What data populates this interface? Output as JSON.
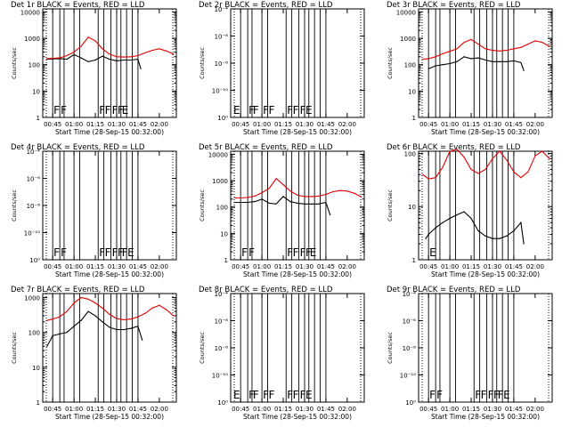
{
  "colors": {
    "background": "#ffffff",
    "axes": "#000000",
    "events": "#000000",
    "lld": "#e00000"
  },
  "chart_data": [
    {
      "type": "line",
      "title": "Det 1r BLACK = Events, RED = LLD",
      "ylabel": "Counts/sec",
      "xlabel": "Start Time (28-Sep-15 00:32:00)",
      "xlim": [
        "00:38",
        "02:12"
      ],
      "ylim": [
        1,
        13000
      ],
      "yscale": "log",
      "yticks": [
        "1",
        "10",
        "100",
        "1000",
        "10000"
      ],
      "xticks": [
        "00:45",
        "01:00",
        "01:15",
        "01:30",
        "01:45",
        "02:00"
      ],
      "flags": [
        "F",
        "F",
        "F",
        "F",
        "F",
        "F",
        "E"
      ],
      "series": [
        {
          "name": "BLACK = Events",
          "x": [
            "00:41",
            "00:45",
            "00:50",
            "00:55",
            "01:00",
            "01:05",
            "01:10",
            "01:15",
            "01:20",
            "01:25",
            "01:30",
            "01:35",
            "01:40",
            "01:45",
            "01:47"
          ],
          "y": [
            160,
            165,
            170,
            160,
            240,
            180,
            130,
            150,
            210,
            160,
            140,
            150,
            150,
            160,
            70
          ]
        },
        {
          "name": "RED = LLD",
          "x": [
            "00:41",
            "00:45",
            "00:50",
            "00:55",
            "01:00",
            "01:05",
            "01:10",
            "01:15",
            "01:20",
            "01:25",
            "01:30",
            "01:35",
            "01:40",
            "01:45",
            "01:50",
            "01:55",
            "02:00",
            "02:05",
            "02:10"
          ],
          "y": [
            170,
            175,
            180,
            220,
            300,
            500,
            1100,
            800,
            400,
            250,
            200,
            195,
            200,
            220,
            280,
            350,
            400,
            330,
            250
          ]
        }
      ]
    },
    {
      "type": "line",
      "title": "Det 2r BLACK = Events, RED = LLD",
      "ylabel": "Counts/sec",
      "xlabel": "Start Time (28-Sep-15 00:32:00)",
      "xlim": [
        "00:38",
        "02:12"
      ],
      "ylim": [
        1,
        10
      ],
      "yscale": "log",
      "yticks": [
        "10⁰",
        "10⁻¹⁰",
        "10⁻⁸",
        "10⁻⁶",
        "10⁻⁴"
      ],
      "xticks": [
        "00:45",
        "01:00",
        "01:15",
        "01:30",
        "01:45",
        "02:00"
      ],
      "flags": [
        "E",
        "F",
        "F",
        "F",
        "F",
        "F",
        "F",
        "F",
        "E"
      ],
      "series": []
    },
    {
      "type": "line",
      "title": "Det 3r BLACK = Events, RED = LLD",
      "ylabel": "Counts/sec",
      "xlabel": "Start Time (28-Sep-15 00:32:00)",
      "xlim": [
        "00:38",
        "02:12"
      ],
      "ylim": [
        1,
        13000
      ],
      "yscale": "log",
      "yticks": [
        "1",
        "10",
        "100",
        "1000",
        "10000"
      ],
      "xticks": [
        "00:45",
        "01:00",
        "01:15",
        "01:30",
        "01:45",
        "02:00"
      ],
      "flags": [],
      "series": [
        {
          "name": "BLACK = Events",
          "x": [
            "00:45",
            "00:50",
            "00:55",
            "01:00",
            "01:05",
            "01:10",
            "01:15",
            "01:20",
            "01:25",
            "01:30",
            "01:35",
            "01:40",
            "01:45",
            "01:50",
            "01:52"
          ],
          "y": [
            70,
            90,
            100,
            110,
            130,
            200,
            170,
            180,
            150,
            130,
            130,
            130,
            140,
            120,
            60
          ]
        },
        {
          "name": "RED = LLD",
          "x": [
            "00:41",
            "00:45",
            "00:50",
            "00:55",
            "01:00",
            "01:05",
            "01:10",
            "01:15",
            "01:20",
            "01:25",
            "01:30",
            "01:35",
            "01:40",
            "01:45",
            "01:50",
            "01:55",
            "02:00",
            "02:05",
            "02:10"
          ],
          "y": [
            160,
            170,
            200,
            260,
            320,
            400,
            700,
            900,
            600,
            400,
            350,
            330,
            350,
            400,
            450,
            600,
            800,
            700,
            500
          ]
        }
      ]
    },
    {
      "type": "line",
      "title": "Det 4r BLACK = Events, RED = LLD",
      "ylabel": "Counts/sec",
      "xlabel": "Start Time (28-Sep-15 00:32:00)",
      "xlim": [
        "00:38",
        "02:12"
      ],
      "ylim": [
        1,
        10
      ],
      "yscale": "log",
      "yticks": [
        "10⁰",
        "10⁻¹⁰",
        "10⁻⁸",
        "10⁻⁶",
        "10⁻⁴"
      ],
      "xticks": [
        "00:45",
        "01:00",
        "01:15",
        "01:30",
        "01:45",
        "02:00"
      ],
      "flags": [
        "F",
        "F",
        "F",
        "F",
        "F",
        "F",
        "F",
        "E"
      ],
      "series": []
    },
    {
      "type": "line",
      "title": "Det 5r BLACK = Events, RED = LLD",
      "ylabel": "Counts/sec",
      "xlabel": "Start Time (28-Sep-15 00:32:00)",
      "xlim": [
        "00:38",
        "02:12"
      ],
      "ylim": [
        1,
        13000
      ],
      "yscale": "log",
      "yticks": [
        "1",
        "10",
        "100",
        "1000",
        "10000"
      ],
      "xticks": [
        "00:45",
        "01:00",
        "01:15",
        "01:30",
        "01:45",
        "02:00"
      ],
      "flags": [
        "F",
        "F",
        "F",
        "F",
        "F",
        "F",
        "E"
      ],
      "series": [
        {
          "name": "BLACK = Events",
          "x": [
            "00:41",
            "00:45",
            "00:50",
            "00:55",
            "01:00",
            "01:05",
            "01:10",
            "01:15",
            "01:20",
            "01:25",
            "01:30",
            "01:35",
            "01:40",
            "01:45",
            "01:48"
          ],
          "y": [
            150,
            150,
            150,
            160,
            200,
            140,
            130,
            250,
            160,
            140,
            130,
            130,
            130,
            150,
            50
          ]
        },
        {
          "name": "RED = LLD",
          "x": [
            "00:41",
            "00:45",
            "00:50",
            "00:55",
            "01:00",
            "01:05",
            "01:10",
            "01:15",
            "01:20",
            "01:25",
            "01:30",
            "01:35",
            "01:40",
            "01:45",
            "01:50",
            "01:55",
            "02:00",
            "02:05",
            "02:10"
          ],
          "y": [
            220,
            220,
            230,
            260,
            350,
            500,
            1200,
            700,
            400,
            280,
            250,
            250,
            260,
            300,
            380,
            420,
            400,
            330,
            240
          ]
        }
      ]
    },
    {
      "type": "line",
      "title": "Det 6r BLACK = Events, RED = LLD",
      "ylabel": "Counts/sec",
      "xlabel": "Start Time (28-Sep-15 00:32:00)",
      "xlim": [
        "00:38",
        "02:12"
      ],
      "ylim": [
        1,
        110
      ],
      "yscale": "log",
      "yticks": [
        "1",
        "10",
        "100"
      ],
      "xticks": [
        "00:45",
        "01:00",
        "01:15",
        "01:30",
        "01:45",
        "02:00"
      ],
      "flags": [
        "E"
      ],
      "series": [
        {
          "name": "BLACK = Events",
          "x": [
            "00:43",
            "00:45",
            "00:50",
            "00:55",
            "01:00",
            "01:05",
            "01:10",
            "01:15",
            "01:20",
            "01:25",
            "01:30",
            "01:35",
            "01:40",
            "01:45",
            "01:50",
            "01:52"
          ],
          "y": [
            2.5,
            3,
            4,
            5,
            6,
            7,
            8,
            6,
            3.5,
            2.8,
            2.5,
            2.5,
            2.8,
            3.5,
            5,
            2
          ]
        },
        {
          "name": "RED = LLD",
          "x": [
            "00:41",
            "00:45",
            "00:50",
            "00:55",
            "01:00",
            "01:05",
            "01:10",
            "01:15",
            "01:20",
            "01:25",
            "01:30",
            "01:35",
            "01:40",
            "01:45",
            "01:50",
            "01:55",
            "02:00",
            "02:05",
            "02:10"
          ],
          "y": [
            40,
            33,
            35,
            55,
            110,
            120,
            85,
            50,
            42,
            50,
            80,
            110,
            75,
            45,
            35,
            45,
            90,
            110,
            80
          ]
        }
      ]
    },
    {
      "type": "line",
      "title": "Det 7r BLACK = Events, RED = LLD",
      "ylabel": "Counts/sec",
      "xlabel": "Start Time (28-Sep-15 00:32:00)",
      "xlim": [
        "00:38",
        "02:12"
      ],
      "ylim": [
        1,
        1300
      ],
      "yscale": "log",
      "yticks": [
        "1",
        "10",
        "100",
        "1000"
      ],
      "xticks": [
        "00:45",
        "01:00",
        "01:15",
        "01:30",
        "01:45",
        "02:00"
      ],
      "flags": [],
      "series": [
        {
          "name": "BLACK = Events",
          "x": [
            "00:41",
            "00:45",
            "00:50",
            "00:55",
            "01:00",
            "01:05",
            "01:10",
            "01:15",
            "01:20",
            "01:25",
            "01:30",
            "01:35",
            "01:40",
            "01:45",
            "01:48"
          ],
          "y": [
            40,
            80,
            90,
            100,
            150,
            220,
            400,
            300,
            200,
            140,
            120,
            120,
            130,
            150,
            60
          ]
        },
        {
          "name": "RED = LLD",
          "x": [
            "00:41",
            "00:45",
            "00:50",
            "00:55",
            "01:00",
            "01:05",
            "01:10",
            "01:15",
            "01:20",
            "01:25",
            "01:30",
            "01:35",
            "01:40",
            "01:45",
            "01:50",
            "01:55",
            "02:00",
            "02:05",
            "02:10"
          ],
          "y": [
            220,
            240,
            280,
            400,
            700,
            1000,
            900,
            700,
            500,
            330,
            250,
            230,
            240,
            280,
            350,
            500,
            600,
            450,
            300
          ]
        }
      ]
    },
    {
      "type": "line",
      "title": "Det 8r BLACK = Events, RED = LLD",
      "ylabel": "Counts/sec",
      "xlabel": "Start Time (28-Sep-15 00:32:00)",
      "xlim": [
        "00:38",
        "02:12"
      ],
      "ylim": [
        1,
        10
      ],
      "yscale": "log",
      "yticks": [
        "10⁰",
        "10⁻¹⁰",
        "10⁻⁸",
        "10⁻⁶",
        "10⁻⁴"
      ],
      "xticks": [
        "00:45",
        "01:00",
        "01:15",
        "01:30",
        "01:45",
        "02:00"
      ],
      "flags": [
        "E",
        "F",
        "F",
        "F",
        "F",
        "F",
        "F",
        "F",
        "E"
      ],
      "series": []
    },
    {
      "type": "line",
      "title": "Det 9r BLACK = Events, RED = LLD",
      "ylabel": "Counts/sec",
      "xlabel": "Start Time (28-Sep-15 00:32:00)",
      "xlim": [
        "00:38",
        "02:12"
      ],
      "ylim": [
        1,
        10
      ],
      "yscale": "log",
      "yticks": [
        "10⁰",
        "10⁻¹⁰",
        "10⁻⁸",
        "10⁻⁶",
        "10⁻⁴"
      ],
      "xticks": [
        "00:45",
        "01:00",
        "01:15",
        "01:30",
        "01:45",
        "02:00"
      ],
      "flags": [
        "F",
        "F",
        "F",
        "F",
        "F",
        "F",
        "F",
        "E"
      ],
      "series": []
    }
  ],
  "event_lines": [
    "00:45",
    "00:50",
    "00:53",
    "01:00",
    "01:04",
    "01:17",
    "01:21",
    "01:26",
    "01:30",
    "01:33",
    "01:37",
    "01:41",
    "01:45"
  ]
}
